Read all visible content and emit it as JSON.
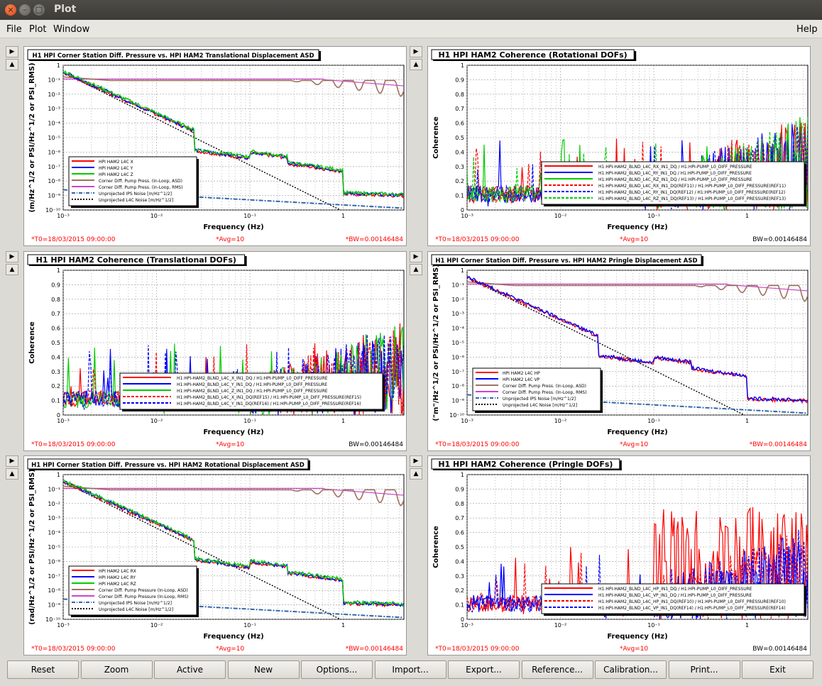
{
  "window": {
    "title": "Plot",
    "close_glyph": "×",
    "min_glyph": "–",
    "max_glyph": "□"
  },
  "menu": {
    "file": "File",
    "plot": "Plot",
    "window": "Window",
    "help": "Help"
  },
  "pane_buttons": {
    "expand": "▶",
    "collapse": "▲"
  },
  "footer": {
    "t0": "*T0=18/03/2015 09:00:00",
    "avg": "*Avg=10",
    "bw_star": "*BW=0.00146484",
    "bw": "BW=0.00146484"
  },
  "axis": {
    "freq_label": "Frequency (Hz)",
    "coh_label": "Coherence",
    "asd_trans_label": "(m/Hz^1/2 or PSI/Hz^1/2 or PSI_RMS)",
    "asd_pringle_label": "(\"m\"/Hz^1/2 or PSI/Hz^1/2 or PSI_RMS)",
    "asd_rot_label": "(rad/Hz^1/2 or PSI/Hz^1/2 or PSI_RMS)",
    "xticks": [
      "10⁻³",
      "10⁻²",
      "10⁻¹",
      "1"
    ],
    "asd_yticks": [
      "1",
      "10⁻¹",
      "10⁻²",
      "10⁻³",
      "10⁻⁴",
      "10⁻⁵",
      "10⁻⁶",
      "10⁻⁷",
      "10⁻⁸",
      "10⁻⁹",
      "10⁻¹⁰"
    ],
    "coh_yticks": [
      "1",
      "0.9",
      "0.8",
      "0.7",
      "0.6",
      "0.5",
      "0.4",
      "0.3",
      "0.2",
      "0.1",
      "0"
    ]
  },
  "panels": [
    {
      "title": "H1 HPI Corner Station Diff. Pressure vs. HPI HAM2 Translational Displacement ASD",
      "kind": "asd",
      "legend": [
        {
          "label": "HPI HAM2 L4C X",
          "color": "#ff0000",
          "style": "solid"
        },
        {
          "label": "HPI HAM2 L4C Y",
          "color": "#0000ff",
          "style": "solid"
        },
        {
          "label": "HPI HAM2 L4C Z",
          "color": "#00cc00",
          "style": "solid"
        },
        {
          "label": "Corner Diff. Pump Press. (In-Loop, ASD)",
          "color": "#a07060",
          "style": "solid"
        },
        {
          "label": "Corner Diff. Pump Press. (In-Loop, RMS)",
          "color": "#cc44cc",
          "style": "solid"
        },
        {
          "label": "Unprojected IPS Noise [m/Hz^1/2]",
          "color": "#3366aa",
          "style": "dashdot"
        },
        {
          "label": "Unprojected L4C Noise [m/Hz^1/2]",
          "color": "#000000",
          "style": "dotted"
        }
      ],
      "footer_right": "bw_star"
    },
    {
      "title": "H1 HPI HAM2 Coherence (Rotational DOFs)",
      "kind": "coh",
      "legend": [
        {
          "label": "H1:HPI-HAM2_BLND_L4C_RX_IN1_DQ / H1:HPI-PUMP_L0_DIFF_PRESSURE",
          "color": "#ff0000",
          "style": "solid"
        },
        {
          "label": "H1:HPI-HAM2_BLND_L4C_RY_IN1_DQ / H1:HPI-PUMP_L0_DIFF_PRESSURE",
          "color": "#0000ff",
          "style": "solid"
        },
        {
          "label": "H1:HPI-HAM2_BLND_L4C_RZ_IN1_DQ / H1:HPI-PUMP_L0_DIFF_PRESSURE",
          "color": "#00cc00",
          "style": "solid"
        },
        {
          "label": "H1:HPI-HAM2_BLND_L4C_RX_IN1_DQ(REF11) / H1:HPI-PUMP_L0_DIFF_PRESSURE(REF11)",
          "color": "#ff0000",
          "style": "dashed"
        },
        {
          "label": "H1:HPI-HAM2_BLND_L4C_RY_IN1_DQ(REF12) / H1:HPI-PUMP_L0_DIFF_PRESSURE(REF12)",
          "color": "#0000ff",
          "style": "dashed"
        },
        {
          "label": "H1:HPI-HAM2_BLND_L4C_RZ_IN1_DQ(REF13) / H1:HPI-PUMP_L0_DIFF_PRESSURE(REF13)",
          "color": "#00cc00",
          "style": "dashed"
        }
      ],
      "footer_right": "bw"
    },
    {
      "title": "H1 HPI HAM2 Coherence (Translational DOFs)",
      "kind": "coh",
      "legend": [
        {
          "label": "H1:HPI-HAM2_BLND_L4C_X_IN1_DQ / H1:HPI-PUMP_L0_DIFF_PRESSURE",
          "color": "#ff0000",
          "style": "solid"
        },
        {
          "label": "H1:HPI-HAM2_BLND_L4C_Y_IN1_DQ / H1:HPI-PUMP_L0_DIFF_PRESSURE",
          "color": "#0000ff",
          "style": "solid"
        },
        {
          "label": "H1:HPI-HAM2_BLND_L4C_Z_IN1_DQ / H1:HPI-PUMP_L0_DIFF_PRESSURE",
          "color": "#00cc00",
          "style": "solid"
        },
        {
          "label": "H1:HPI-HAM2_BLND_L4C_X_IN1_DQ(REF15) / H1:HPI-PUMP_L0_DIFF_PRESSURE(REF15)",
          "color": "#ff0000",
          "style": "dashed"
        },
        {
          "label": "H1:HPI-HAM2_BLND_L4C_Y_IN1_DQ(REF16) / H1:HPI-PUMP_L0_DIFF_PRESSURE(REF16)",
          "color": "#0000ff",
          "style": "dashed"
        }
      ],
      "footer_right": "bw"
    },
    {
      "title": "H1 HPI Corner Station Diff. Pressure vs. HPI HAM2 Pringle Displacement ASD",
      "kind": "asd",
      "legend": [
        {
          "label": "HPI HAM2 L4C HP",
          "color": "#ff0000",
          "style": "solid"
        },
        {
          "label": "HPI HAM2 L4C VP",
          "color": "#0000ff",
          "style": "solid"
        },
        {
          "label": "Corner Diff. Pump Press. (In-Loop, ASD)",
          "color": "#a07060",
          "style": "solid"
        },
        {
          "label": "Corner Diff. Pump Press. (In-Loop, RMS)",
          "color": "#cc44cc",
          "style": "solid"
        },
        {
          "label": "Unprojected IPS Noise [m/Hz^1/2]",
          "color": "#3366aa",
          "style": "dashdot"
        },
        {
          "label": "Unprojected L4C Noise [m/Hz^1/2]",
          "color": "#000000",
          "style": "dotted"
        }
      ],
      "footer_right": "bw_star"
    },
    {
      "title": "H1 HPI Corner Station Diff. Pressure vs. HPI HAM2 Rotational Displacement ASD",
      "kind": "asd",
      "legend": [
        {
          "label": "HPI HAM2 L4C RX",
          "color": "#ff0000",
          "style": "solid"
        },
        {
          "label": "HPI HAM2 L4C RY",
          "color": "#0000ff",
          "style": "solid"
        },
        {
          "label": "HPI HAM2 L4C RZ",
          "color": "#00cc00",
          "style": "solid"
        },
        {
          "label": "Corner Diff. Pump Pressure (In-Loop, ASD)",
          "color": "#a07060",
          "style": "solid"
        },
        {
          "label": "Corner Diff. Pump Pressure (In-Loop, RMS)",
          "color": "#cc44cc",
          "style": "solid"
        },
        {
          "label": "Unprojected IPS Noise [m/Hz^1/2]",
          "color": "#3366aa",
          "style": "dashdot"
        },
        {
          "label": "Unprojected L4C Noise [m/Hz^1/2]",
          "color": "#000000",
          "style": "dotted"
        }
      ],
      "footer_right": "bw_star"
    },
    {
      "title": "H1 HPI HAM2 Coherence (Pringle DOFs)",
      "kind": "coh",
      "legend": [
        {
          "label": "H1:HPI-HAM2_BLND_L4C_HP_IN1_DQ / H1:HPI-PUMP_L0_DIFF_PRESSURE",
          "color": "#ff0000",
          "style": "solid"
        },
        {
          "label": "H1:HPI-HAM2_BLND_L4C_VP_IN1_DQ / H1:HPI-PUMP_L0_DIFF_PRESSURE",
          "color": "#0000ff",
          "style": "solid"
        },
        {
          "label": "H1:HPI-HAM2_BLND_L4C_HP_IN1_DQ(REF10) / H1:HPI-PUMP_L0_DIFF_PRESSURE(REF10)",
          "color": "#ff0000",
          "style": "dashed"
        },
        {
          "label": "H1:HPI-HAM2_BLND_L4C_VP_IN1_DQ(REF14) / H1:HPI-PUMP_L0_DIFF_PRESSURE(REF14)",
          "color": "#0000ff",
          "style": "dashed"
        }
      ],
      "footer_right": "bw"
    }
  ],
  "buttons": [
    "Reset",
    "Zoom",
    "Active",
    "New",
    "Options...",
    "Import...",
    "Export...",
    "Reference...",
    "Calibration...",
    "Print...",
    "Exit"
  ]
}
